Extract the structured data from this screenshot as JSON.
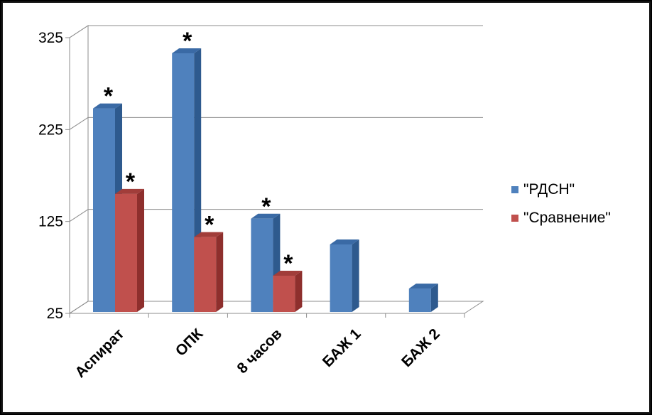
{
  "chart_data": {
    "type": "bar",
    "categories": [
      "Аспират",
      "ОПК",
      "8 часов",
      "БАЖ 1",
      "БАЖ 2"
    ],
    "series": [
      {
        "name": "\"РДСН\"",
        "color": "#4f81bd",
        "side_color": "#2e5a8e",
        "top_color": "#3a6aa5",
        "values": [
          248,
          308,
          128,
          100,
          52
        ],
        "annotations": [
          "*",
          "*",
          "*",
          "",
          ""
        ]
      },
      {
        "name": "\"Сравнение\"",
        "color": "#c0504d",
        "side_color": "#8e2f2d",
        "top_color": "#a13d3a",
        "values": [
          155,
          108,
          66,
          null,
          null
        ],
        "annotations": [
          "*",
          "*",
          "*",
          "",
          ""
        ]
      }
    ],
    "yticks": [
      25,
      125,
      225,
      325
    ],
    "ylim": [
      25,
      325
    ],
    "title": "",
    "xlabel": "",
    "ylabel": "",
    "grid": true,
    "legend_position": "right",
    "three_d": true
  }
}
